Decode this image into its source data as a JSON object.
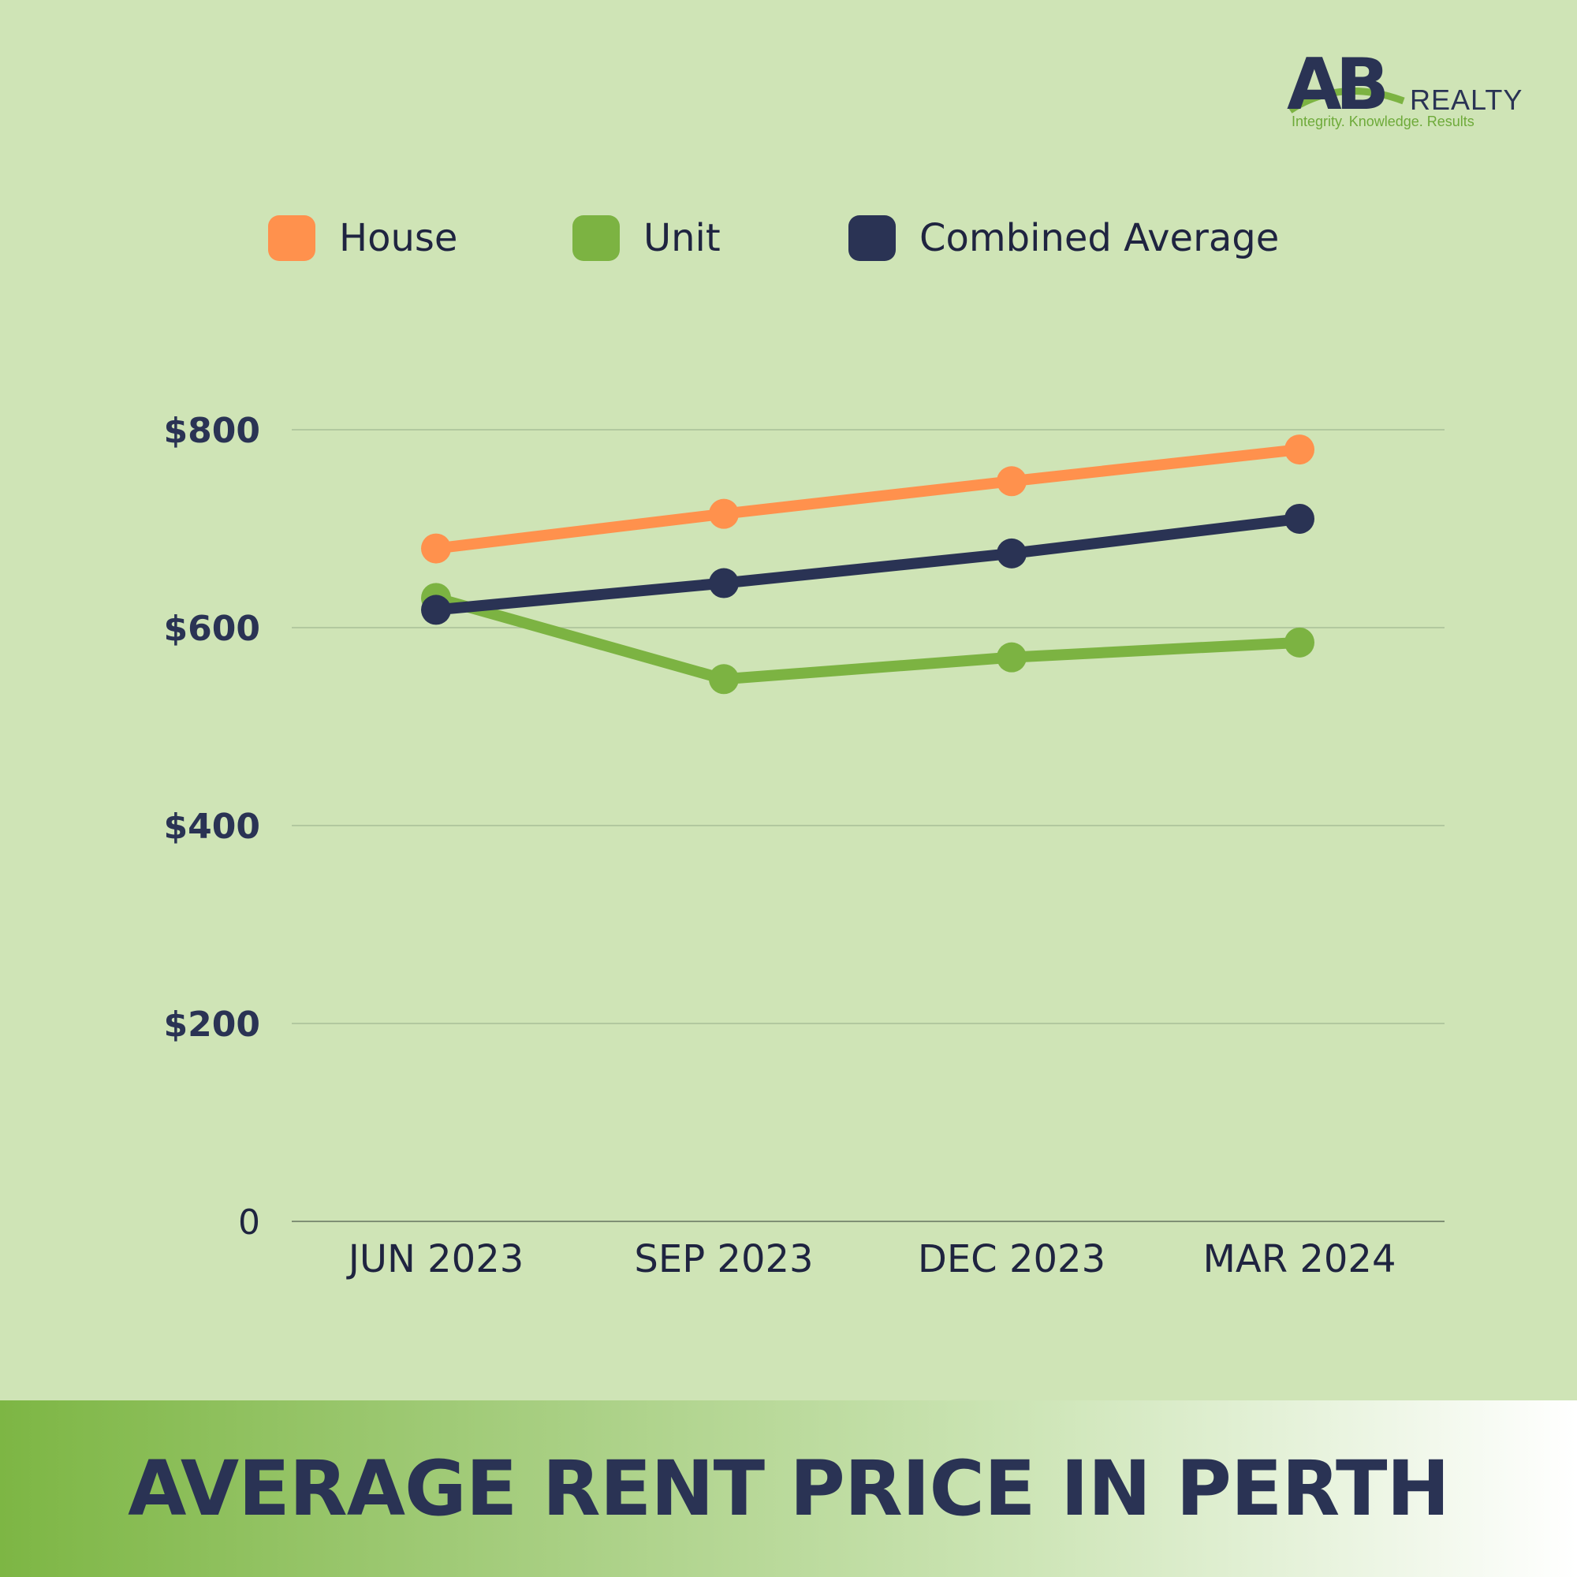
{
  "logo": {
    "mark": "AB",
    "word": "REALTY",
    "tagline": "Integrity. Knowledge. Results"
  },
  "legend": [
    {
      "label": "House",
      "color": "#ff914d"
    },
    {
      "label": "Unit",
      "color": "#7cb342"
    },
    {
      "label": "Combined Average",
      "color": "#2a3354"
    }
  ],
  "banner": {
    "title": "AVERAGE RENT PRICE IN PERTH"
  },
  "chart_data": {
    "type": "line",
    "title": "",
    "xlabel": "",
    "ylabel": "",
    "categories": [
      "JUN 2023",
      "SEP 2023",
      "DEC 2023",
      "MAR 2024"
    ],
    "y_ticks": [
      0,
      200,
      400,
      600,
      800
    ],
    "y_tick_labels": [
      "0",
      "$200",
      "$400",
      "$600",
      "$800"
    ],
    "ylim": [
      0,
      800
    ],
    "grid": true,
    "legend_position": "top",
    "series": [
      {
        "name": "House",
        "color": "#ff914d",
        "values": [
          680,
          715,
          748,
          780
        ]
      },
      {
        "name": "Unit",
        "color": "#7cb342",
        "values": [
          630,
          548,
          570,
          585
        ]
      },
      {
        "name": "Combined Average",
        "color": "#2a3354",
        "values": [
          618,
          645,
          675,
          710
        ]
      }
    ]
  }
}
